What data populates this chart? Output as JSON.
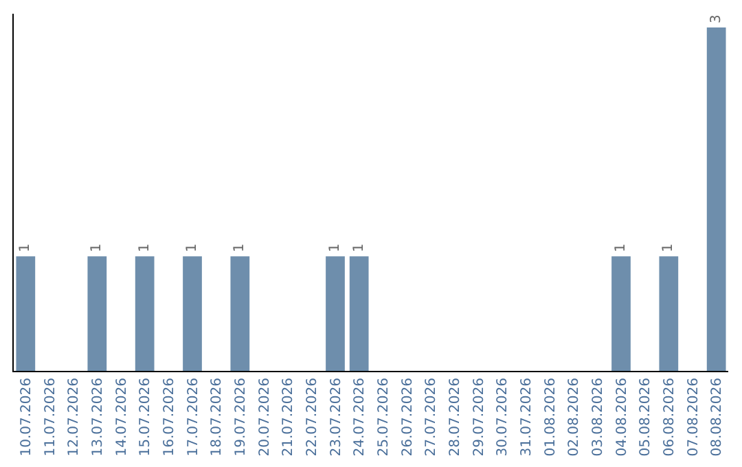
{
  "chart_data": {
    "type": "bar",
    "categories": [
      "10.07.2026",
      "11.07.2026",
      "12.07.2026",
      "13.07.2026",
      "14.07.2026",
      "15.07.2026",
      "16.07.2026",
      "17.07.2026",
      "18.07.2026",
      "19.07.2026",
      "20.07.2026",
      "21.07.2026",
      "22.07.2026",
      "23.07.2026",
      "24.07.2026",
      "25.07.2026",
      "26.07.2026",
      "27.07.2026",
      "28.07.2026",
      "29.07.2026",
      "30.07.2026",
      "31.07.2026",
      "01.08.2026",
      "02.08.2026",
      "03.08.2026",
      "04.08.2026",
      "05.08.2026",
      "06.08.2026",
      "07.08.2026",
      "08.08.2026"
    ],
    "values": [
      1,
      0,
      0,
      1,
      0,
      1,
      0,
      1,
      0,
      1,
      0,
      0,
      0,
      1,
      1,
      0,
      0,
      0,
      0,
      0,
      0,
      0,
      0,
      0,
      0,
      1,
      0,
      1,
      0,
      3
    ],
    "value_labels": [
      "1",
      null,
      null,
      "1",
      null,
      "1",
      null,
      "1",
      null,
      "1",
      null,
      null,
      null,
      "1",
      "1",
      null,
      null,
      null,
      null,
      null,
      null,
      null,
      null,
      null,
      null,
      "1",
      null,
      "1",
      null,
      "3"
    ],
    "color": "#6e8eac",
    "ylim": [
      0,
      3.12
    ],
    "tick_labels": "x",
    "legend": false
  }
}
